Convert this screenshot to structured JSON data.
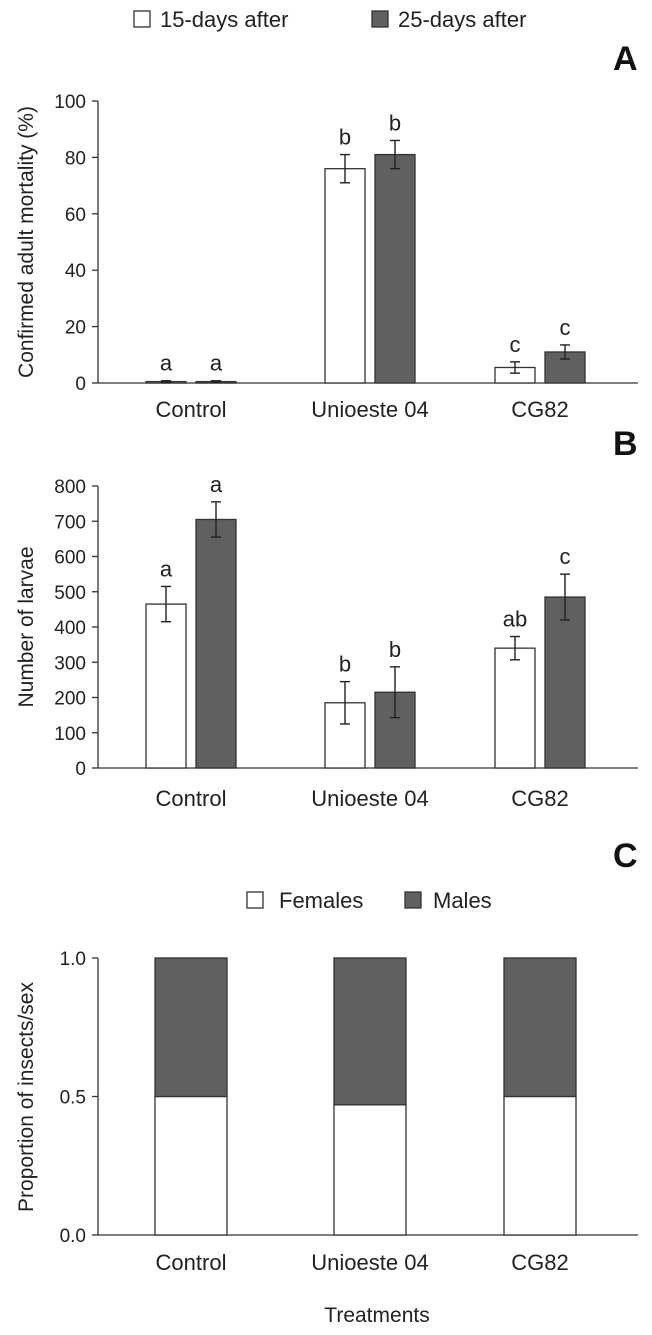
{
  "legend_top": {
    "items": [
      {
        "label": "15-days after",
        "color": "#ffffff"
      },
      {
        "label": "25-days after",
        "color": "#606060"
      }
    ]
  },
  "xlabel": "Treatments",
  "chart_data": [
    {
      "panel": "A",
      "type": "bar",
      "ylabel": "Confirmed adult mortality (%)",
      "ylim": [
        0,
        100
      ],
      "yticks": [
        0,
        20,
        40,
        60,
        80,
        100
      ],
      "categories": [
        "Control",
        "Unioeste 04",
        "CG82"
      ],
      "series": [
        {
          "name": "15-days after",
          "color": "#ffffff",
          "values": [
            0.5,
            76,
            5.5
          ],
          "errors": [
            0.3,
            5,
            2
          ],
          "letters": [
            "a",
            "b",
            "c"
          ]
        },
        {
          "name": "25-days after",
          "color": "#606060",
          "values": [
            0.5,
            81,
            11
          ],
          "errors": [
            0.3,
            5,
            2.5
          ],
          "letters": [
            "a",
            "b",
            "c"
          ]
        }
      ]
    },
    {
      "panel": "B",
      "type": "bar",
      "ylabel": "Number of larvae",
      "ylim": [
        0,
        800
      ],
      "yticks": [
        0,
        100,
        200,
        300,
        400,
        500,
        600,
        700,
        800
      ],
      "categories": [
        "Control",
        "Unioeste 04",
        "CG82"
      ],
      "series": [
        {
          "name": "15-days after",
          "color": "#ffffff",
          "values": [
            465,
            185,
            340
          ],
          "errors": [
            50,
            60,
            33
          ],
          "letters": [
            "a",
            "b",
            "ab"
          ]
        },
        {
          "name": "25-days after",
          "color": "#606060",
          "values": [
            705,
            215,
            485
          ],
          "errors": [
            50,
            72,
            65
          ],
          "letters": [
            "a",
            "b",
            "c"
          ]
        }
      ]
    },
    {
      "panel": "C",
      "type": "bar",
      "stacked": true,
      "ylabel": "Proportion of insects/sex",
      "ylim": [
        0,
        1
      ],
      "yticks": [
        "0.0",
        "0.5",
        "1.0"
      ],
      "categories": [
        "Control",
        "Unioeste 04",
        "CG82"
      ],
      "legend": [
        {
          "label": "Females",
          "color": "#ffffff"
        },
        {
          "label": "Males",
          "color": "#606060"
        }
      ],
      "series": [
        {
          "name": "Females",
          "color": "#ffffff",
          "values": [
            0.5,
            0.47,
            0.5
          ]
        },
        {
          "name": "Males",
          "color": "#606060",
          "values": [
            0.5,
            0.53,
            0.5
          ]
        }
      ]
    }
  ]
}
